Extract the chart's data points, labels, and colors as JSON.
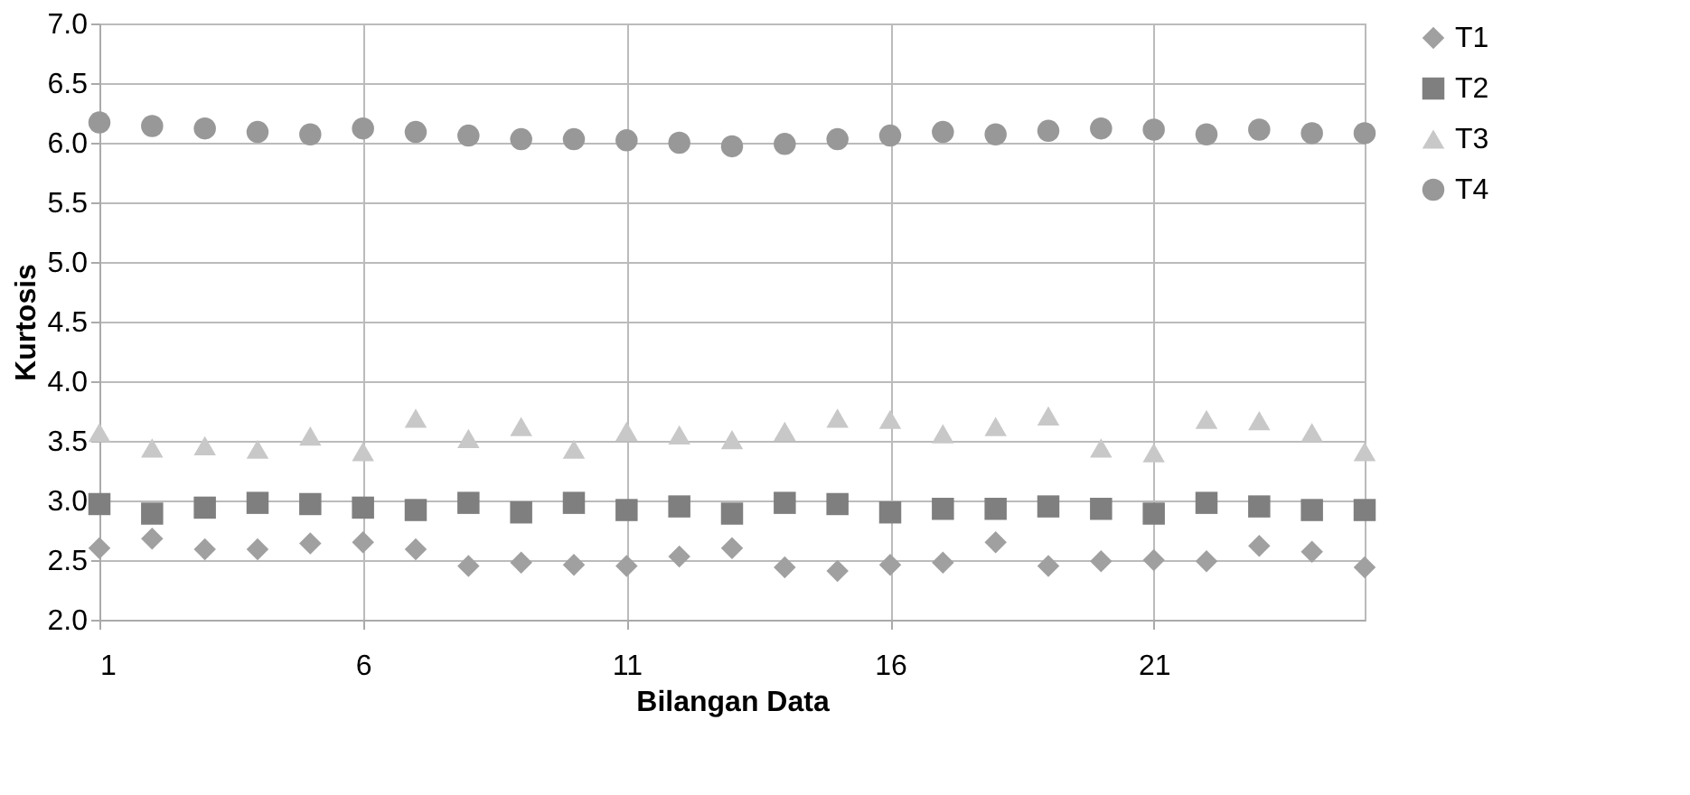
{
  "chart_data": {
    "type": "scatter",
    "xlabel": "Bilangan Data",
    "ylabel": "Kurtosis",
    "x": [
      1,
      2,
      3,
      4,
      5,
      6,
      7,
      8,
      9,
      10,
      11,
      12,
      13,
      14,
      15,
      16,
      17,
      18,
      19,
      20,
      21,
      22,
      23,
      24,
      25
    ],
    "xlim": [
      1,
      25
    ],
    "xticks": [
      1,
      6,
      11,
      16,
      21
    ],
    "ylim": [
      2.0,
      7.0
    ],
    "yticks": [
      {
        "value": 2.0,
        "label": "2.0"
      },
      {
        "value": 2.5,
        "label": "2.5"
      },
      {
        "value": 3.0,
        "label": "3.0"
      },
      {
        "value": 3.5,
        "label": "3.5"
      },
      {
        "value": 4.0,
        "label": "4.0"
      },
      {
        "value": 4.5,
        "label": "4.5"
      },
      {
        "value": 5.0,
        "label": "5.0"
      },
      {
        "value": 5.5,
        "label": "5.5"
      },
      {
        "value": 6.0,
        "label": "6.0"
      },
      {
        "value": 6.5,
        "label": "6.5"
      },
      {
        "value": 7.0,
        "label": "7.0"
      }
    ],
    "grid": true,
    "legend": "right",
    "series": [
      {
        "name": "T1",
        "color": "#a0a0a0",
        "marker": "diamond",
        "values": [
          2.6,
          2.68,
          2.59,
          2.59,
          2.64,
          2.65,
          2.59,
          2.45,
          2.48,
          2.46,
          2.45,
          2.53,
          2.6,
          2.44,
          2.41,
          2.46,
          2.48,
          2.65,
          2.45,
          2.49,
          2.5,
          2.49,
          2.62,
          2.57,
          2.44
        ]
      },
      {
        "name": "T2",
        "color": "#7f7f7f",
        "marker": "square",
        "values": [
          2.97,
          2.89,
          2.94,
          2.98,
          2.97,
          2.94,
          2.92,
          2.98,
          2.9,
          2.98,
          2.92,
          2.95,
          2.89,
          2.98,
          2.97,
          2.9,
          2.93,
          2.93,
          2.95,
          2.93,
          2.89,
          2.98,
          2.95,
          2.92,
          2.92
        ]
      },
      {
        "name": "T3",
        "color": "#c8c8c8",
        "marker": "triangle",
        "values": [
          3.57,
          3.44,
          3.46,
          3.43,
          3.54,
          3.41,
          3.69,
          3.52,
          3.62,
          3.43,
          3.58,
          3.55,
          3.51,
          3.58,
          3.69,
          3.68,
          3.56,
          3.62,
          3.71,
          3.44,
          3.4,
          3.68,
          3.67,
          3.57,
          3.41
        ]
      },
      {
        "name": "T4",
        "color": "#989898",
        "marker": "circle",
        "values": [
          6.17,
          6.14,
          6.12,
          6.09,
          6.07,
          6.12,
          6.09,
          6.06,
          6.03,
          6.03,
          6.02,
          6.0,
          5.97,
          5.99,
          6.03,
          6.06,
          6.09,
          6.07,
          6.1,
          6.12,
          6.11,
          6.07,
          6.11,
          6.08,
          6.08
        ]
      }
    ]
  }
}
